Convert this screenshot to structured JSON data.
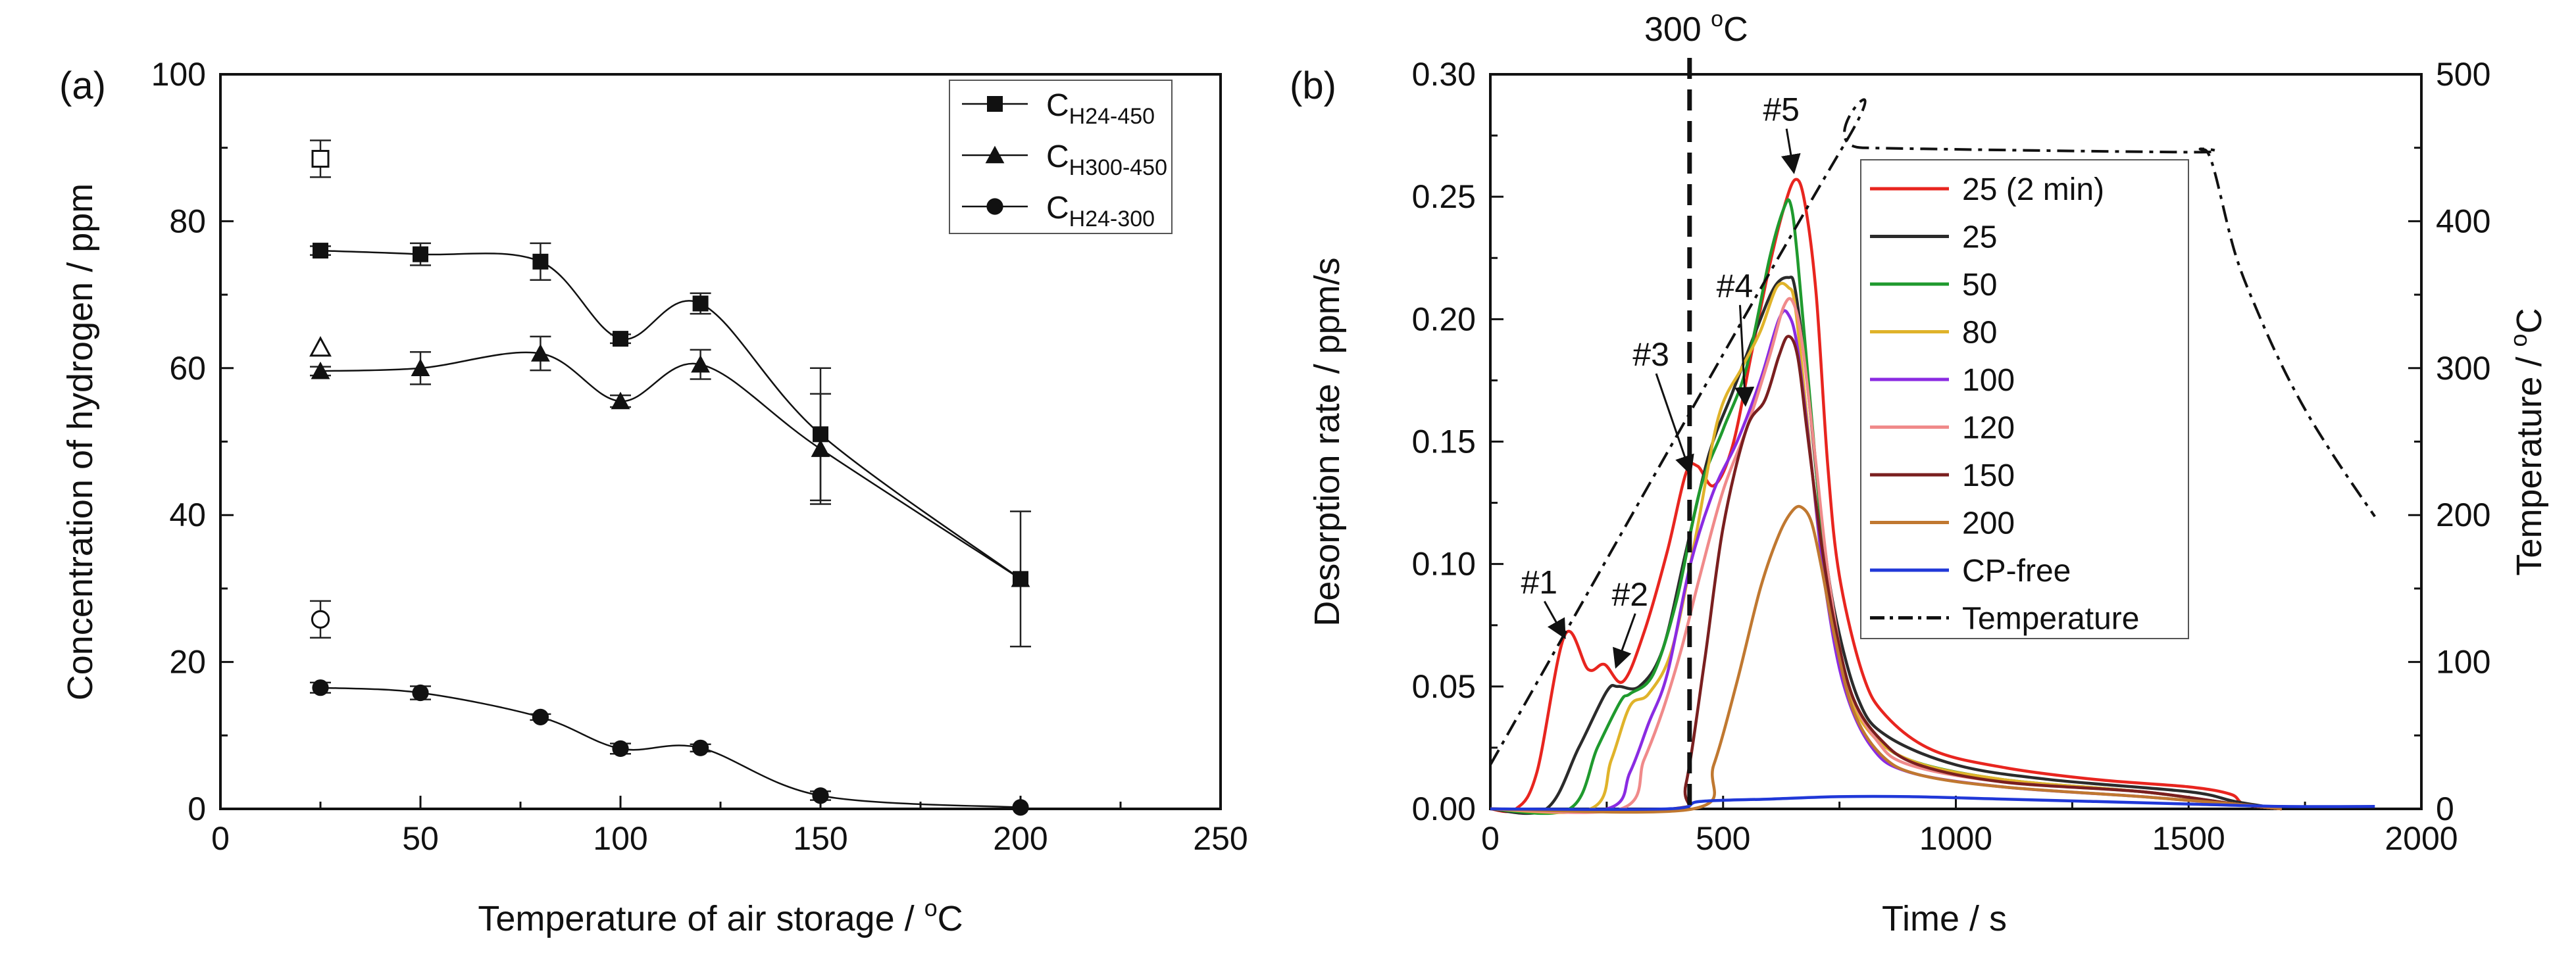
{
  "chart_data": [
    {
      "type": "scatter",
      "panel_label": "(a)",
      "title": "",
      "xlabel": "Temperature of air storage / ",
      "xlabel_unit_sup": "o",
      "xlabel_unit_end": "C",
      "ylabel": "Concentration of hydrogen / ppm",
      "xlim": [
        0,
        250
      ],
      "ylim": [
        0,
        100
      ],
      "xticks": [
        0,
        50,
        100,
        150,
        200,
        250
      ],
      "yticks": [
        0,
        20,
        40,
        60,
        80,
        100
      ],
      "grid": false,
      "legend_position": "top-right",
      "series": [
        {
          "name": "C",
          "subscript": "H24-450",
          "marker": "square",
          "x": [
            25,
            50,
            80,
            100,
            120,
            150,
            200
          ],
          "y": [
            76,
            75.5,
            74.5,
            64,
            68.8,
            51,
            31.3
          ],
          "err": [
            0.6,
            1.5,
            2.5,
            0.6,
            1.4,
            9,
            9.2
          ]
        },
        {
          "name": "C",
          "subscript": "H300-450",
          "marker": "triangle",
          "x": [
            25,
            50,
            80,
            100,
            120,
            150,
            200
          ],
          "y": [
            59.6,
            60,
            62,
            55.5,
            60.5,
            49,
            31.3
          ],
          "err": [
            0.6,
            2.2,
            2.3,
            0.8,
            2,
            7.5,
            0
          ]
        },
        {
          "name": "C",
          "subscript": "H24-300",
          "marker": "circle",
          "x": [
            25,
            50,
            80,
            100,
            120,
            150,
            200
          ],
          "y": [
            16.5,
            15.8,
            12.5,
            8.2,
            8.3,
            1.8,
            0.2
          ],
          "err": [
            0.7,
            0.9,
            0.4,
            0.7,
            0.5,
            0.6,
            0
          ]
        }
      ],
      "open_markers": [
        {
          "marker": "square",
          "x": 25,
          "y": 88.5,
          "err": 2.5
        },
        {
          "marker": "triangle",
          "x": 25,
          "y": 62.8,
          "err": 0
        },
        {
          "marker": "circle",
          "x": 25,
          "y": 25.8,
          "err": 2.5
        }
      ]
    },
    {
      "type": "line",
      "panel_label": "(b)",
      "title": "",
      "xlabel": "Time / s",
      "ylabel": "Desorption rate / ppm/s",
      "y2label": "Temperature / ",
      "y2label_unit_sup": "o",
      "y2label_unit_end": "C",
      "xlim": [
        0,
        2000
      ],
      "ylim": [
        0,
        0.3
      ],
      "y2lim": [
        0,
        500
      ],
      "xticks": [
        0,
        500,
        1000,
        1500,
        2000
      ],
      "yticks": [
        "0.00",
        "0.05",
        "0.10",
        "0.15",
        "0.20",
        "0.25",
        "0.30"
      ],
      "y2ticks": [
        0,
        100,
        200,
        300,
        400,
        500
      ],
      "grid": false,
      "legend_position": "top-right",
      "vline": {
        "x": 428,
        "label_main": "300 ",
        "label_sup": "o",
        "label_end": "C"
      },
      "annotations": [
        {
          "text": "#1",
          "x": 105,
          "y": 0.088,
          "to_x": 160,
          "to_y": 0.07
        },
        {
          "text": "#2",
          "x": 300,
          "y": 0.083,
          "to_x": 270,
          "to_y": 0.058
        },
        {
          "text": "#3",
          "x": 345,
          "y": 0.181,
          "to_x": 430,
          "to_y": 0.137
        },
        {
          "text": "#4",
          "x": 525,
          "y": 0.209,
          "to_x": 548,
          "to_y": 0.165
        },
        {
          "text": "#5",
          "x": 625,
          "y": 0.281,
          "to_x": 652,
          "to_y": 0.26
        }
      ],
      "series": [
        {
          "name": "25 (2 min)",
          "color": "#e8251f",
          "t": [
            0,
            55,
            100,
            160,
            210,
            245,
            285,
            330,
            380,
            420,
            445,
            480,
            520,
            560,
            600,
            630,
            655,
            675,
            700,
            725,
            750,
            800,
            850,
            950,
            1100,
            1300,
            1500,
            1590,
            1620,
            1700
          ],
          "v": [
            0,
            0,
            0.015,
            0.071,
            0.057,
            0.059,
            0.052,
            0.072,
            0.105,
            0.137,
            0.14,
            0.132,
            0.148,
            0.185,
            0.222,
            0.245,
            0.257,
            0.248,
            0.21,
            0.14,
            0.095,
            0.055,
            0.038,
            0.024,
            0.017,
            0.012,
            0.009,
            0.006,
            0.002,
            0
          ]
        },
        {
          "name": "25",
          "color": "#2b2b2b",
          "t": [
            0,
            120,
            190,
            250,
            275,
            320,
            370,
            420,
            470,
            520,
            570,
            610,
            640,
            655,
            680,
            710,
            740,
            790,
            850,
            1000,
            1200,
            1500,
            1600,
            1700
          ],
          "v": [
            0,
            0,
            0.025,
            0.048,
            0.05,
            0.05,
            0.065,
            0.105,
            0.145,
            0.17,
            0.195,
            0.213,
            0.217,
            0.212,
            0.175,
            0.12,
            0.08,
            0.045,
            0.03,
            0.018,
            0.012,
            0.007,
            0.003,
            0
          ]
        },
        {
          "name": "50",
          "color": "#1f9a2e",
          "t": [
            0,
            170,
            230,
            280,
            300,
            350,
            400,
            450,
            500,
            550,
            600,
            630,
            645,
            660,
            690,
            720,
            760,
            820,
            900,
            1100,
            1400,
            1600,
            1700
          ],
          "v": [
            0,
            0,
            0.025,
            0.044,
            0.047,
            0.055,
            0.085,
            0.13,
            0.155,
            0.18,
            0.225,
            0.245,
            0.247,
            0.225,
            0.16,
            0.1,
            0.055,
            0.032,
            0.02,
            0.012,
            0.007,
            0.002,
            0
          ]
        },
        {
          "name": "80",
          "color": "#e0b32a",
          "t": [
            0,
            215,
            260,
            300,
            340,
            390,
            440,
            490,
            540,
            580,
            615,
            640,
            655,
            680,
            710,
            750,
            800,
            900,
            1100,
            1400,
            1600,
            1700
          ],
          "v": [
            0,
            0,
            0.02,
            0.042,
            0.047,
            0.065,
            0.11,
            0.16,
            0.18,
            0.195,
            0.213,
            0.213,
            0.205,
            0.16,
            0.105,
            0.06,
            0.035,
            0.02,
            0.012,
            0.007,
            0.002,
            0
          ]
        },
        {
          "name": "100",
          "color": "#8a2be2",
          "t": [
            0,
            250,
            300,
            340,
            380,
            430,
            480,
            530,
            580,
            620,
            640,
            660,
            690,
            720,
            760,
            820,
            900,
            1100,
            1400,
            1600,
            1700
          ],
          "v": [
            0,
            0,
            0.015,
            0.035,
            0.055,
            0.1,
            0.13,
            0.15,
            0.175,
            0.2,
            0.202,
            0.188,
            0.14,
            0.09,
            0.05,
            0.025,
            0.015,
            0.009,
            0.005,
            0.002,
            0
          ]
        },
        {
          "name": "120",
          "color": "#f08a8a",
          "t": [
            0,
            280,
            330,
            370,
            410,
            450,
            500,
            550,
            600,
            630,
            650,
            670,
            700,
            730,
            770,
            830,
            900,
            1100,
            1400,
            1600,
            1700
          ],
          "v": [
            0,
            0,
            0.02,
            0.04,
            0.065,
            0.095,
            0.13,
            0.155,
            0.185,
            0.205,
            0.207,
            0.19,
            0.14,
            0.09,
            0.05,
            0.028,
            0.018,
            0.011,
            0.007,
            0.002,
            0
          ]
        },
        {
          "name": "150",
          "color": "#7a1f1f",
          "t": [
            0,
            390,
            420,
            460,
            500,
            550,
            590,
            620,
            640,
            660,
            680,
            710,
            740,
            780,
            840,
            920,
            1100,
            1400,
            1600,
            1700
          ],
          "v": [
            0,
            0,
            0.01,
            0.06,
            0.115,
            0.155,
            0.167,
            0.185,
            0.193,
            0.185,
            0.155,
            0.11,
            0.075,
            0.045,
            0.028,
            0.018,
            0.011,
            0.007,
            0.002,
            0
          ]
        },
        {
          "name": "200",
          "color": "#c07830",
          "t": [
            0,
            435,
            480,
            530,
            580,
            620,
            650,
            670,
            690,
            710,
            740,
            780,
            840,
            920,
            1100,
            1400,
            1600,
            1700
          ],
          "v": [
            0,
            0,
            0.018,
            0.052,
            0.09,
            0.112,
            0.122,
            0.123,
            0.117,
            0.1,
            0.07,
            0.04,
            0.022,
            0.014,
            0.009,
            0.005,
            0.002,
            0
          ]
        },
        {
          "name": "CP-free",
          "color": "#2038d8",
          "t": [
            0,
            380,
            450,
            600,
            750,
            900,
            1100,
            1300,
            1500,
            1700,
            1900
          ],
          "v": [
            0,
            0,
            0.003,
            0.004,
            0.005,
            0.005,
            0.004,
            0.003,
            0.002,
            0.001,
            0.001
          ]
        },
        {
          "name": "Temperature",
          "color": "#111111",
          "axis": "y2",
          "dash": "dashdot",
          "t": [
            0,
            760,
            800,
            1500,
            1525,
            1550,
            1600,
            1650,
            1700,
            1750,
            1800,
            1850,
            1900
          ],
          "v": [
            30,
            452,
            450,
            447,
            449,
            440,
            378,
            337,
            302,
            272,
            246,
            222,
            199
          ]
        }
      ]
    }
  ]
}
